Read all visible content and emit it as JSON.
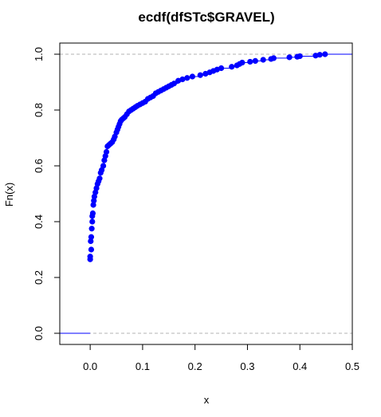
{
  "chart_data": {
    "type": "scatter",
    "title": "ecdf(dfSTc$GRAVEL)",
    "xlabel": "x",
    "ylabel": "Fn(x)",
    "xlim": [
      -0.058,
      0.5
    ],
    "ylim": [
      -0.04,
      1.04
    ],
    "x_ticks": [
      0.0,
      0.1,
      0.2,
      0.3,
      0.4,
      0.5
    ],
    "x_tick_labels": [
      "0.0",
      "0.1",
      "0.2",
      "0.3",
      "0.4",
      "0.5"
    ],
    "y_ticks": [
      0.0,
      0.2,
      0.4,
      0.6,
      0.8,
      1.0
    ],
    "y_tick_labels": [
      "0.0",
      "0.2",
      "0.4",
      "0.6",
      "0.8",
      "1.0"
    ],
    "grid": false,
    "reference_lines": [
      0,
      1
    ],
    "colors": {
      "points": "#0000ff",
      "step_line": "#0000ff",
      "reference_line": "#b3b3b3",
      "axis": "#000000"
    },
    "series": [
      {
        "x": [
          0.0,
          0.0,
          0.002,
          0.001,
          0.002,
          0.003,
          0.004,
          0.004,
          0.005,
          0.006,
          0.007,
          0.008,
          0.01,
          0.012,
          0.014,
          0.016,
          0.018,
          0.02,
          0.022,
          0.025,
          0.027,
          0.029,
          0.031,
          0.033,
          0.036,
          0.039,
          0.042,
          0.045,
          0.047,
          0.05,
          0.052,
          0.054,
          0.056,
          0.058,
          0.06,
          0.063,
          0.066,
          0.07,
          0.074,
          0.078,
          0.082,
          0.086,
          0.09,
          0.095,
          0.1,
          0.105,
          0.11,
          0.115,
          0.12,
          0.125,
          0.13,
          0.135,
          0.14,
          0.145,
          0.15,
          0.155,
          0.16,
          0.168,
          0.176,
          0.185,
          0.195,
          0.21,
          0.22,
          0.228,
          0.235,
          0.242,
          0.25,
          0.27,
          0.28,
          0.285,
          0.29,
          0.305,
          0.315,
          0.33,
          0.345,
          0.35,
          0.38,
          0.395,
          0.4,
          0.43,
          0.438,
          0.448
        ],
        "y": [
          0.265,
          0.275,
          0.3,
          0.33,
          0.345,
          0.375,
          0.4,
          0.42,
          0.43,
          0.46,
          0.475,
          0.49,
          0.505,
          0.52,
          0.535,
          0.545,
          0.555,
          0.575,
          0.585,
          0.6,
          0.62,
          0.635,
          0.65,
          0.67,
          0.675,
          0.68,
          0.685,
          0.695,
          0.705,
          0.72,
          0.73,
          0.74,
          0.75,
          0.76,
          0.765,
          0.77,
          0.775,
          0.785,
          0.795,
          0.8,
          0.805,
          0.81,
          0.815,
          0.82,
          0.825,
          0.83,
          0.84,
          0.845,
          0.85,
          0.86,
          0.865,
          0.87,
          0.875,
          0.88,
          0.885,
          0.89,
          0.895,
          0.905,
          0.91,
          0.915,
          0.92,
          0.925,
          0.93,
          0.935,
          0.94,
          0.945,
          0.95,
          0.955,
          0.96,
          0.965,
          0.97,
          0.973,
          0.976,
          0.98,
          0.983,
          0.986,
          0.989,
          0.991,
          0.993,
          0.995,
          0.998,
          1.0
        ]
      }
    ]
  }
}
